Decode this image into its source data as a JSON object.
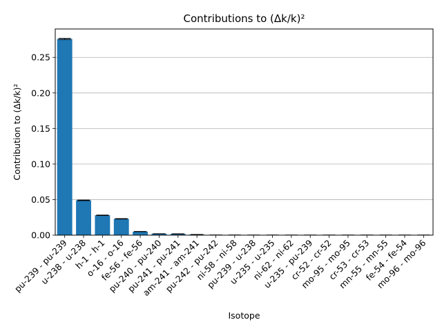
{
  "chart_data": {
    "type": "bar",
    "title": "Contributions to (Δk/k)²",
    "xlabel": "Isotope",
    "ylabel": "Contribution to (Δk/k)²",
    "ylim": [
      0,
      0.29
    ],
    "yticks": [
      "0.00",
      "0.05",
      "0.10",
      "0.15",
      "0.20",
      "0.25"
    ],
    "ytick_values": [
      0,
      0.05,
      0.1,
      0.15,
      0.2,
      0.25
    ],
    "grid": "y",
    "bar_color": "#1f77b4",
    "errorbar_color": "#000000",
    "grid_color": "#b0b0b0",
    "categories": [
      "pu-239 - pu-239",
      "u-238 - u-238",
      "h-1 - h-1",
      "o-16 - o-16",
      "fe-56 - fe-56",
      "pu-240 - pu-240",
      "pu-241 - pu-241",
      "am-241 - am-241",
      "pu-242 - pu-242",
      "ni-58 - ni-58",
      "pu-239 - u-238",
      "u-235 - u-235",
      "ni-62 - ni-62",
      "u-235 - pu-239",
      "cr-52 - cr-52",
      "mo-95 - mo-95",
      "cr-53 - cr-53",
      "mn-55 - mn-55",
      "fe-54 - fe-54",
      "mo-96 - mo-96"
    ],
    "values": [
      0.276,
      0.049,
      0.028,
      0.023,
      0.005,
      0.002,
      0.0018,
      0.0009,
      0.0002,
      0.0002,
      0.0001,
      0.0001,
      0.0001,
      0.0001,
      0.0001,
      0.0001,
      0.0001,
      0.0001,
      0.0001,
      0.0001
    ],
    "errors": [
      0.0008,
      0.0004,
      0.0003,
      0.0003,
      0.0002,
      0.0001,
      0.0001,
      0.0001,
      0.0001,
      0.0001,
      0.0001,
      0.0001,
      0.0001,
      0.0001,
      0.0001,
      0.0001,
      0.0001,
      0.0001,
      0.0001,
      0.0001
    ]
  }
}
